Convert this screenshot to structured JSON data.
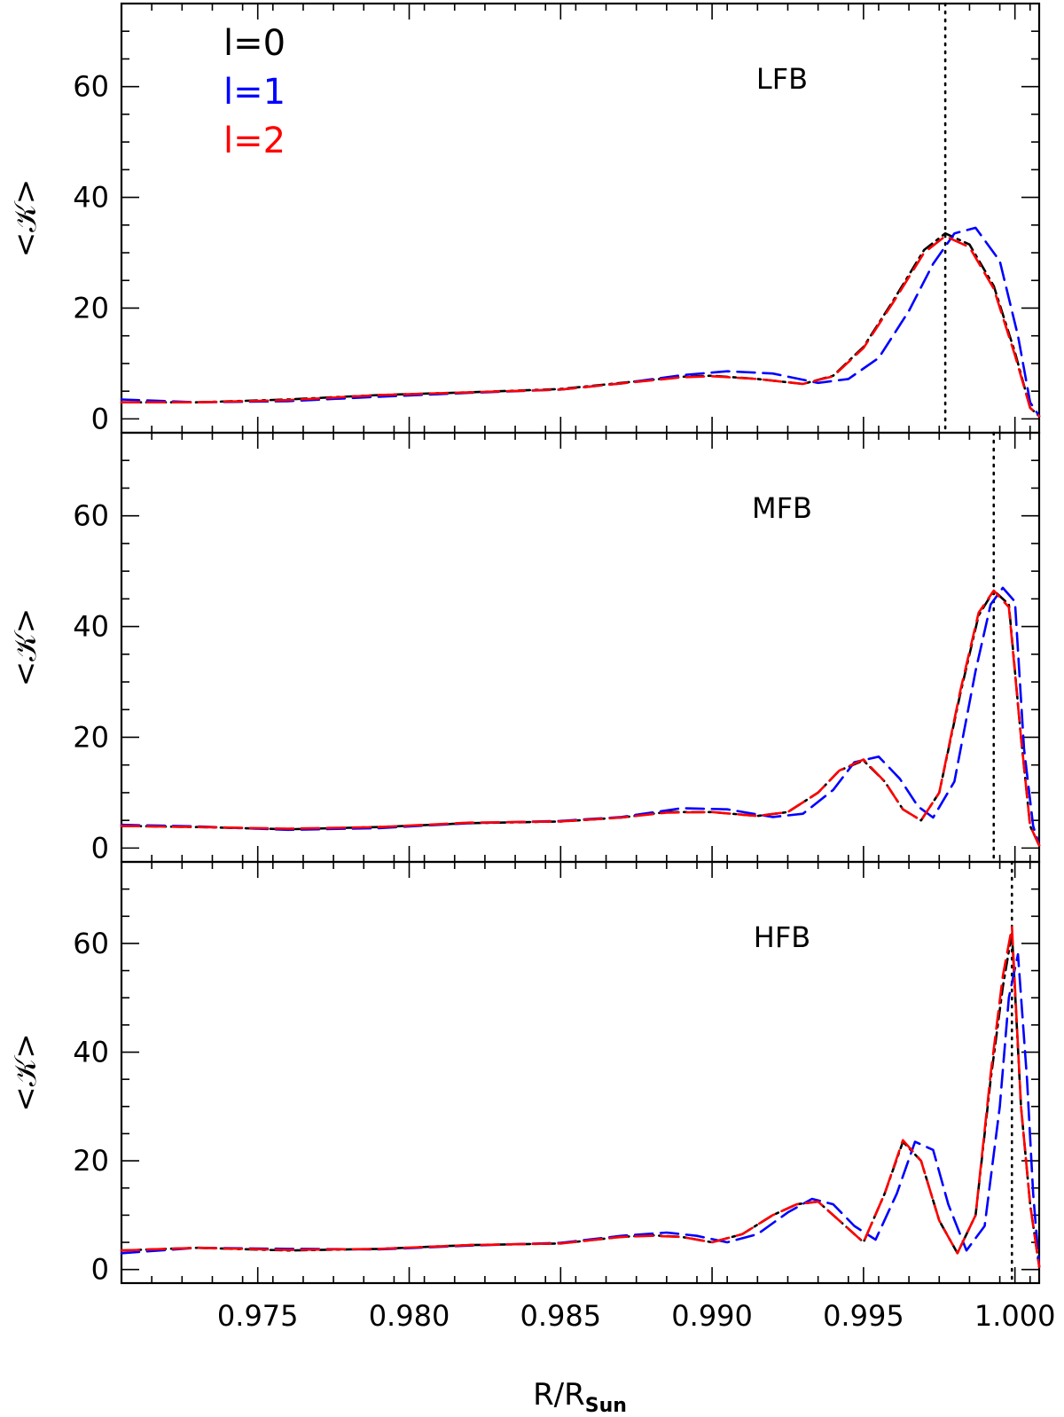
{
  "chart_data": [
    {
      "type": "line",
      "annotation": "LFB",
      "ylabel": "<𝒦>",
      "xlabel": "",
      "xlim": [
        0.9705,
        1.0008
      ],
      "ylim": [
        -2.5,
        75
      ],
      "xticks": [
        0.975,
        0.98,
        0.985,
        0.99,
        0.995,
        1.0
      ],
      "xtick_labels": [
        "",
        "",
        "",
        "",
        "",
        ""
      ],
      "yticks": [
        0,
        20,
        40,
        60
      ],
      "ytick_labels": [
        "0",
        "20",
        "40",
        "60"
      ],
      "vline": 0.9977,
      "legend": {
        "placement": "top-left",
        "entries": [
          "l=0",
          "l=1",
          "l=2"
        ]
      },
      "series": [
        {
          "name": "l=0",
          "color": "#000000",
          "style": "dash-dot",
          "x": [
            0.9705,
            0.973,
            0.976,
            0.979,
            0.982,
            0.985,
            0.987,
            0.989,
            0.99,
            0.9915,
            0.993,
            0.994,
            0.995,
            0.996,
            0.997,
            0.9977,
            0.9985,
            0.9993,
            1.0,
            1.0005,
            1.0008
          ],
          "y": [
            3.0,
            3.0,
            3.5,
            4.3,
            4.8,
            5.4,
            6.5,
            7.6,
            7.8,
            7.2,
            6.3,
            7.8,
            13.0,
            21.5,
            30.5,
            33.5,
            31.5,
            24.0,
            12.0,
            2.0,
            0.5
          ]
        },
        {
          "name": "l=1",
          "color": "#0000ff",
          "style": "dashed",
          "x": [
            0.9705,
            0.973,
            0.976,
            0.979,
            0.982,
            0.985,
            0.987,
            0.989,
            0.9905,
            0.992,
            0.9935,
            0.9945,
            0.9955,
            0.9965,
            0.9973,
            0.998,
            0.9987,
            0.9995,
            1.0001,
            1.0005,
            1.0008
          ],
          "y": [
            3.5,
            3.0,
            3.2,
            4.0,
            4.7,
            5.3,
            6.4,
            7.9,
            8.6,
            8.2,
            6.5,
            7.2,
            11.0,
            19.5,
            28.0,
            33.5,
            34.5,
            28.5,
            15.0,
            3.0,
            0.5
          ]
        },
        {
          "name": "l=2",
          "color": "#ff0000",
          "style": "dashed",
          "x": [
            0.9705,
            0.973,
            0.976,
            0.979,
            0.982,
            0.985,
            0.987,
            0.989,
            0.99,
            0.9915,
            0.993,
            0.994,
            0.995,
            0.996,
            0.997,
            0.9977,
            0.9985,
            0.9993,
            1.0,
            1.0005,
            1.0008
          ],
          "y": [
            3.0,
            3.0,
            3.4,
            4.3,
            4.8,
            5.3,
            6.4,
            7.5,
            7.7,
            7.2,
            6.3,
            7.7,
            12.8,
            21.2,
            30.0,
            33.0,
            31.0,
            23.5,
            11.5,
            2.0,
            0.5
          ]
        }
      ]
    },
    {
      "type": "line",
      "annotation": "MFB",
      "ylabel": "<𝒦>",
      "xlabel": "",
      "xlim": [
        0.9705,
        1.0008
      ],
      "ylim": [
        -2.5,
        75
      ],
      "xticks": [
        0.975,
        0.98,
        0.985,
        0.99,
        0.995,
        1.0
      ],
      "xtick_labels": [
        "",
        "",
        "",
        "",
        "",
        ""
      ],
      "yticks": [
        0,
        20,
        40,
        60
      ],
      "ytick_labels": [
        "0",
        "20",
        "40",
        "60"
      ],
      "vline": 0.9993,
      "series": [
        {
          "name": "l=0",
          "color": "#000000",
          "style": "dash-dot",
          "x": [
            0.9705,
            0.973,
            0.976,
            0.979,
            0.982,
            0.985,
            0.987,
            0.9885,
            0.99,
            0.9915,
            0.9925,
            0.9935,
            0.9942,
            0.995,
            0.9957,
            0.9963,
            0.9969,
            0.9975,
            0.9982,
            0.9988,
            0.9993,
            0.9998,
            1.0002,
            1.0005,
            1.0008
          ],
          "y": [
            4.0,
            3.8,
            3.4,
            3.8,
            4.5,
            4.8,
            5.5,
            6.5,
            6.5,
            5.8,
            6.5,
            10.0,
            14.0,
            15.8,
            12.0,
            7.0,
            5.0,
            10.0,
            28.0,
            42.0,
            46.5,
            44.0,
            20.0,
            4.0,
            0.5
          ]
        },
        {
          "name": "l=1",
          "color": "#0000ff",
          "style": "dashed",
          "x": [
            0.9705,
            0.973,
            0.976,
            0.979,
            0.982,
            0.985,
            0.987,
            0.989,
            0.9905,
            0.992,
            0.993,
            0.994,
            0.9947,
            0.9955,
            0.9962,
            0.9968,
            0.9973,
            0.998,
            0.9987,
            0.9992,
            0.9996,
            1.0,
            1.0003,
            1.0006,
            1.0008
          ],
          "y": [
            4.2,
            3.9,
            3.3,
            3.6,
            4.5,
            4.9,
            5.6,
            7.2,
            7.0,
            5.6,
            6.2,
            10.5,
            15.5,
            16.5,
            12.5,
            7.5,
            5.5,
            12.0,
            32.0,
            44.0,
            47.0,
            44.5,
            18.0,
            4.0,
            0.5
          ]
        },
        {
          "name": "l=2",
          "color": "#ff0000",
          "style": "dashed",
          "x": [
            0.9705,
            0.973,
            0.976,
            0.979,
            0.982,
            0.985,
            0.987,
            0.9885,
            0.99,
            0.9915,
            0.9925,
            0.9935,
            0.9942,
            0.995,
            0.9957,
            0.9963,
            0.9969,
            0.9975,
            0.9982,
            0.9988,
            0.9993,
            0.9998,
            1.0002,
            1.0005,
            1.0008
          ],
          "y": [
            4.0,
            3.8,
            3.5,
            3.8,
            4.6,
            4.8,
            5.5,
            6.4,
            6.5,
            5.8,
            6.5,
            10.0,
            14.0,
            16.0,
            12.0,
            7.0,
            5.0,
            10.0,
            28.5,
            42.5,
            46.5,
            43.5,
            20.0,
            4.0,
            0.5
          ]
        }
      ]
    },
    {
      "type": "line",
      "annotation": "HFB",
      "ylabel": "<𝒦>",
      "xlabel": "R/R_Sun",
      "xlim": [
        0.9705,
        1.0008
      ],
      "ylim": [
        -2.5,
        75
      ],
      "xticks": [
        0.975,
        0.98,
        0.985,
        0.99,
        0.995,
        1.0
      ],
      "xtick_labels": [
        "0.975",
        "0.980",
        "0.985",
        "0.990",
        "0.995",
        "1.000"
      ],
      "yticks": [
        0,
        20,
        40,
        60
      ],
      "ytick_labels": [
        "0",
        "20",
        "40",
        "60"
      ],
      "vline": 0.9999,
      "series": [
        {
          "name": "l=0",
          "color": "#000000",
          "style": "dash-dot",
          "x": [
            0.9705,
            0.973,
            0.976,
            0.979,
            0.982,
            0.985,
            0.987,
            0.988,
            0.989,
            0.99,
            0.991,
            0.992,
            0.9928,
            0.9935,
            0.9942,
            0.995,
            0.9957,
            0.9963,
            0.9969,
            0.9975,
            0.9981,
            0.9987,
            0.9992,
            0.9996,
            0.9999,
            1.0002,
            1.0005,
            1.0008
          ],
          "y": [
            3.5,
            4.0,
            3.5,
            3.8,
            4.5,
            4.8,
            6.0,
            6.3,
            6.0,
            5.0,
            6.5,
            10.0,
            12.0,
            12.5,
            9.0,
            5.0,
            14.0,
            23.5,
            20.0,
            9.0,
            3.0,
            10.0,
            35.0,
            52.0,
            62.0,
            30.0,
            12.0,
            0.5
          ]
        },
        {
          "name": "l=1",
          "color": "#0000ff",
          "style": "dashed",
          "x": [
            0.9705,
            0.973,
            0.976,
            0.979,
            0.982,
            0.985,
            0.987,
            0.9885,
            0.9895,
            0.9905,
            0.9915,
            0.9925,
            0.9933,
            0.994,
            0.9947,
            0.9954,
            0.9961,
            0.9967,
            0.9973,
            0.9978,
            0.9984,
            0.999,
            0.9995,
            0.9998,
            1.0001,
            1.0004,
            1.0006,
            1.0008
          ],
          "y": [
            3.0,
            4.0,
            3.8,
            3.7,
            4.4,
            4.9,
            6.2,
            6.8,
            6.2,
            5.0,
            6.5,
            10.5,
            13.0,
            12.0,
            8.0,
            5.5,
            14.0,
            23.5,
            22.0,
            12.0,
            3.5,
            8.0,
            30.0,
            50.0,
            58.0,
            35.0,
            14.0,
            0.5
          ]
        },
        {
          "name": "l=2",
          "color": "#ff0000",
          "style": "dashed",
          "x": [
            0.9705,
            0.973,
            0.976,
            0.979,
            0.982,
            0.985,
            0.987,
            0.988,
            0.989,
            0.99,
            0.991,
            0.992,
            0.9928,
            0.9935,
            0.9942,
            0.995,
            0.9957,
            0.9963,
            0.9969,
            0.9975,
            0.9981,
            0.9987,
            0.9992,
            0.9996,
            0.9999,
            1.0002,
            1.0005,
            1.0008
          ],
          "y": [
            3.5,
            4.0,
            3.6,
            3.8,
            4.5,
            4.8,
            6.0,
            6.2,
            6.0,
            5.0,
            6.5,
            10.0,
            12.0,
            12.5,
            9.0,
            5.0,
            14.0,
            23.8,
            20.0,
            9.0,
            3.0,
            10.0,
            36.0,
            54.0,
            63.0,
            30.0,
            12.0,
            0.5
          ]
        }
      ]
    }
  ]
}
